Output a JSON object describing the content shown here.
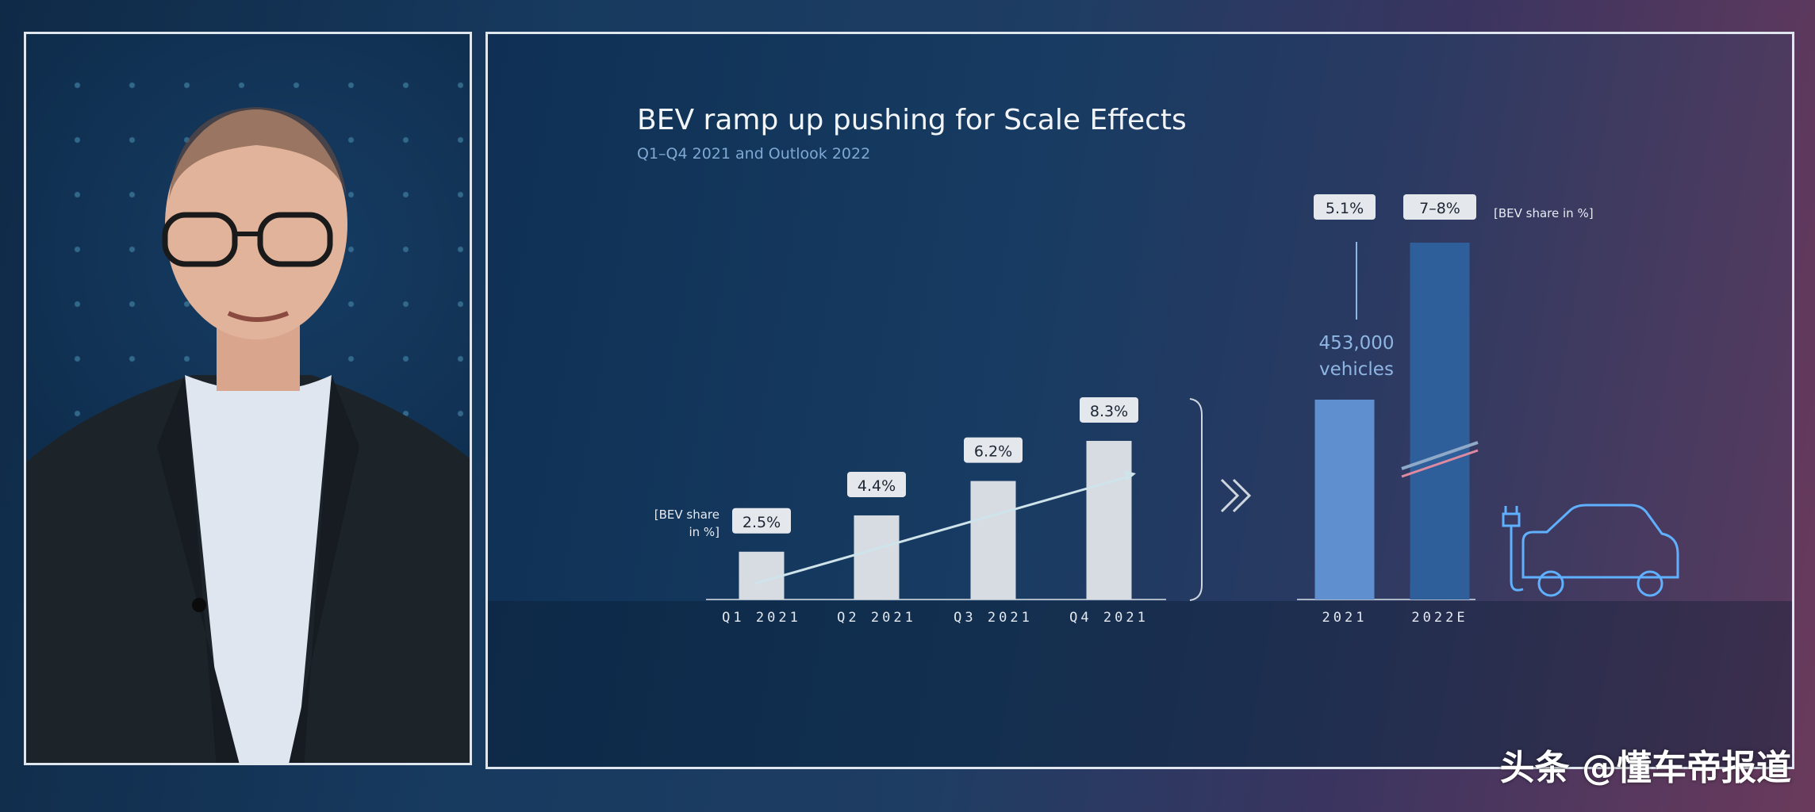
{
  "slide": {
    "title": "BEV ramp up pushing for Scale Effects",
    "subtitle": "Q1–Q4 2021 and Outlook 2022"
  },
  "watermark": "头条 @懂车帝报道",
  "colors": {
    "quarter_bar": "#d7dbe2",
    "bar_2021": "#5f8fcf",
    "bar_2022E": "#2f5f9a",
    "accent_text": "#8fb5e3",
    "label_box": "#e4e7ec"
  },
  "chart_data": [
    {
      "type": "bar",
      "categories": [
        "Q1 2021",
        "Q2 2021",
        "Q3 2021",
        "Q4 2021"
      ],
      "values": [
        2.5,
        4.4,
        6.2,
        8.3
      ],
      "data_labels": [
        "2.5%",
        "4.4%",
        "6.2%",
        "8.3%"
      ],
      "ylabel_line1": "[BEV share",
      "ylabel_line2": "in %]",
      "trend_line": true
    },
    {
      "type": "bar",
      "categories": [
        "2021",
        "2022E"
      ],
      "values": [
        5.1,
        7.5
      ],
      "data_labels": [
        "5.1%",
        "7–8%"
      ],
      "ylabel": "[BEV share in %]",
      "annotation_line1": "453,000",
      "annotation_line2": "vehicles",
      "axis_break_on": "2022E"
    }
  ]
}
